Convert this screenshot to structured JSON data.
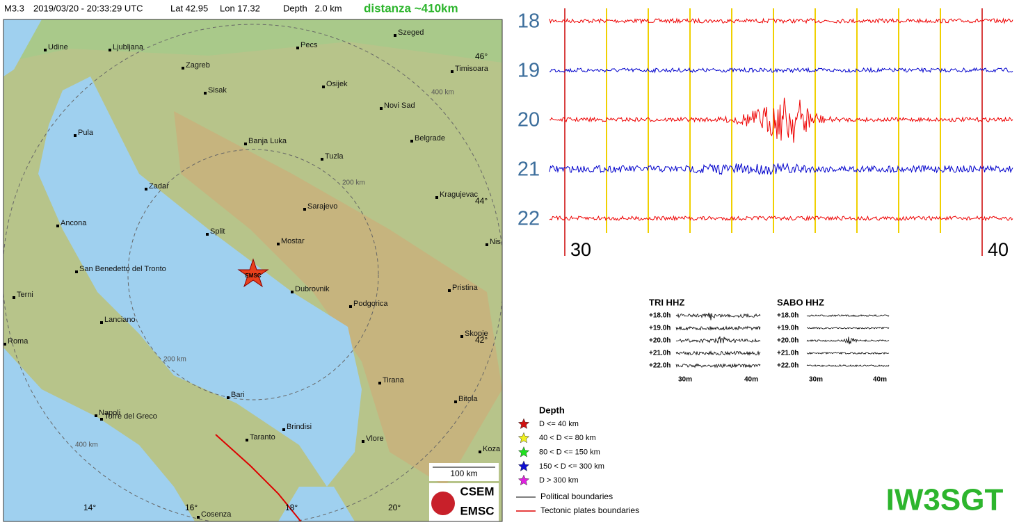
{
  "header": {
    "magnitude": "M3.3",
    "datetime": "2019/03/20 - 20:33:29 UTC",
    "lat": "Lat 42.95",
    "lon": "Lon 17.32",
    "depth": "Depth   2.0 km",
    "distance": "distanza ~410km"
  },
  "map": {
    "cities": [
      "Udine",
      "Ljubljana",
      "Pecs",
      "Szeged",
      "Zagreb",
      "Sisak",
      "Osijek",
      "Timisoara",
      "Novi Sad",
      "Pula",
      "Belgrade",
      "Banja Luka",
      "Tuzla",
      "Zadar",
      "Kragujevac",
      "Sarajevo",
      "Ancona",
      "Split",
      "Mostar",
      "Nis",
      "San Benedetto del Tronto",
      "Dubrovnik",
      "Pristina",
      "Terni",
      "Podgorica",
      "Lanciano",
      "Skopje",
      "Roma",
      "Tirana",
      "Bari",
      "Napoli",
      "Torre del Greco",
      "Bitola",
      "Brindisi",
      "Taranto",
      "Vlore",
      "Koza",
      "Cosenza"
    ],
    "lat_labels": [
      "46°",
      "44°",
      "42°"
    ],
    "lon_labels": [
      "14°",
      "16°",
      "18°",
      "20°"
    ],
    "ring_labels": [
      "400 km",
      "200 km",
      "200 km",
      "400 km"
    ],
    "epicenter": "EMSC",
    "scale": "100 km",
    "logo": [
      "CSEM",
      "EMSC"
    ]
  },
  "seismogram": {
    "hours": [
      "18",
      "19",
      "20",
      "21",
      "22"
    ],
    "minutes": [
      "30",
      "40"
    ]
  },
  "thumbnails": {
    "stations": [
      "TRI HHZ",
      "SABO HHZ"
    ],
    "rows": [
      "+18.0h",
      "+19.0h",
      "+20.0h",
      "+21.0h",
      "+22.0h"
    ],
    "axis": [
      "30m",
      "40m"
    ]
  },
  "legend": {
    "title": "Depth",
    "items": [
      "D <= 40 km",
      "40 < D <= 80 km",
      "80 < D <= 150 km",
      "150 < D <= 300 km",
      "D > 300 km"
    ],
    "boundaries": [
      "Political boundaries",
      "Tectonic plates boundaries"
    ]
  },
  "callsign": "IW3SGT"
}
